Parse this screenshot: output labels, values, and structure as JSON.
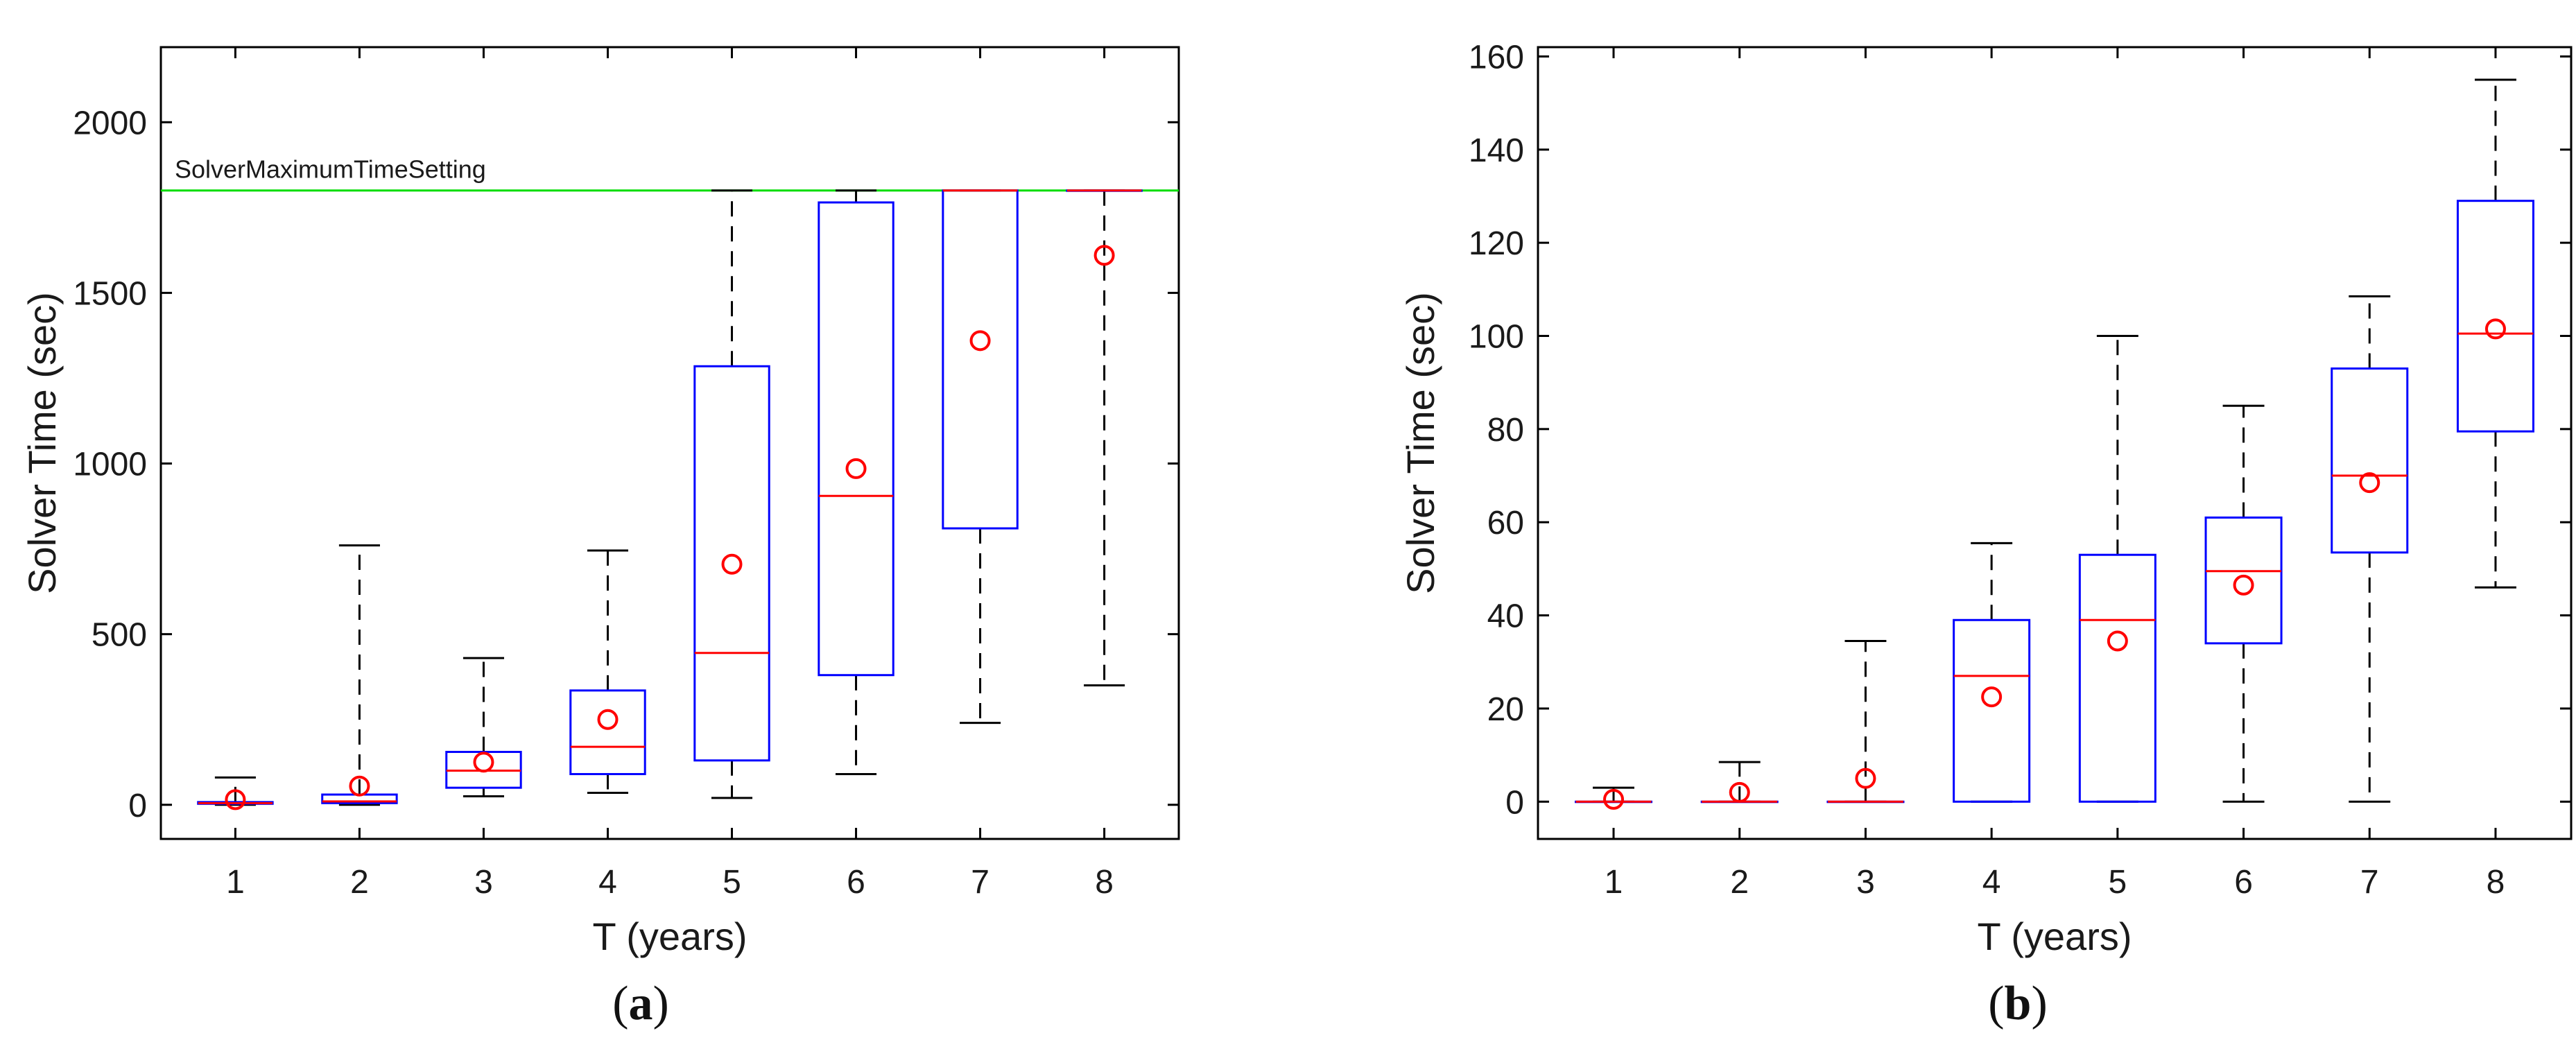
{
  "figure": {
    "colors": {
      "box": "#0000ff",
      "median": "#ff0000",
      "mean_marker": "#ff0000",
      "whisker": "#000000",
      "reference_line": "#00dd00",
      "axes": "#000000"
    }
  },
  "chart_data": [
    {
      "type": "box",
      "caption": "(a)",
      "caption_letter": "a",
      "title": "",
      "xlabel": "T (years)",
      "ylabel": "Solver Time (sec)",
      "x": [
        1,
        2,
        3,
        4,
        5,
        6,
        7,
        8
      ],
      "xlim": [
        0.4,
        8.6
      ],
      "ylim": [
        -100,
        2220
      ],
      "yticks": [
        0,
        500,
        1000,
        1500,
        2000
      ],
      "grid": false,
      "reference_line": {
        "label": "SolverMaximumTimeSetting",
        "y": 1800
      },
      "boxes": [
        {
          "x": 1,
          "whisker_low": 0,
          "q1": 3,
          "median": 5,
          "q3": 8,
          "whisker_high": 80,
          "mean": 15
        },
        {
          "x": 2,
          "whisker_low": 0,
          "q1": 5,
          "median": 10,
          "q3": 30,
          "whisker_high": 760,
          "mean": 55
        },
        {
          "x": 3,
          "whisker_low": 25,
          "q1": 50,
          "median": 100,
          "q3": 155,
          "whisker_high": 430,
          "mean": 125
        },
        {
          "x": 4,
          "whisker_low": 35,
          "q1": 90,
          "median": 170,
          "q3": 335,
          "whisker_high": 745,
          "mean": 250
        },
        {
          "x": 5,
          "whisker_low": 20,
          "q1": 130,
          "median": 445,
          "q3": 1285,
          "whisker_high": 1800,
          "mean": 705
        },
        {
          "x": 6,
          "whisker_low": 90,
          "q1": 380,
          "median": 905,
          "q3": 1765,
          "whisker_high": 1800,
          "mean": 985
        },
        {
          "x": 7,
          "whisker_low": 240,
          "q1": 810,
          "median": 1800,
          "q3": 1800,
          "whisker_high": 1800,
          "mean": 1360
        },
        {
          "x": 8,
          "whisker_low": 350,
          "q1": 1800,
          "median": 1800,
          "q3": 1800,
          "whisker_high": 1800,
          "mean": 1610
        }
      ]
    },
    {
      "type": "box",
      "caption": "(b)",
      "caption_letter": "b",
      "title": "",
      "xlabel": "T (years)",
      "ylabel": "Solver Time (sec)",
      "x": [
        1,
        2,
        3,
        4,
        5,
        6,
        7,
        8
      ],
      "xlim": [
        0.4,
        8.6
      ],
      "ylim": [
        -8,
        162
      ],
      "yticks": [
        0,
        20,
        40,
        60,
        80,
        100,
        120,
        140,
        160
      ],
      "grid": false,
      "boxes": [
        {
          "x": 1,
          "whisker_low": 0,
          "q1": 0,
          "median": 0,
          "q3": 0,
          "whisker_high": 3,
          "mean": 0.5
        },
        {
          "x": 2,
          "whisker_low": 0,
          "q1": 0,
          "median": 0,
          "q3": 0,
          "whisker_high": 8.5,
          "mean": 2
        },
        {
          "x": 3,
          "whisker_low": 0,
          "q1": 0,
          "median": 0,
          "q3": 0,
          "whisker_high": 34.5,
          "mean": 5
        },
        {
          "x": 4,
          "whisker_low": 0,
          "q1": 0,
          "median": 27,
          "q3": 39,
          "whisker_high": 55.5,
          "mean": 22.5
        },
        {
          "x": 5,
          "whisker_low": 0,
          "q1": 0,
          "median": 39,
          "q3": 53,
          "whisker_high": 100,
          "mean": 34.5
        },
        {
          "x": 6,
          "whisker_low": 0,
          "q1": 34,
          "median": 49.5,
          "q3": 61,
          "whisker_high": 85,
          "mean": 46.5
        },
        {
          "x": 7,
          "whisker_low": 0,
          "q1": 53.5,
          "median": 70,
          "q3": 93,
          "whisker_high": 108.5,
          "mean": 68.5
        },
        {
          "x": 8,
          "whisker_low": 46,
          "q1": 79.5,
          "median": 100.5,
          "q3": 129,
          "whisker_high": 155,
          "mean": 101.5
        }
      ]
    }
  ]
}
